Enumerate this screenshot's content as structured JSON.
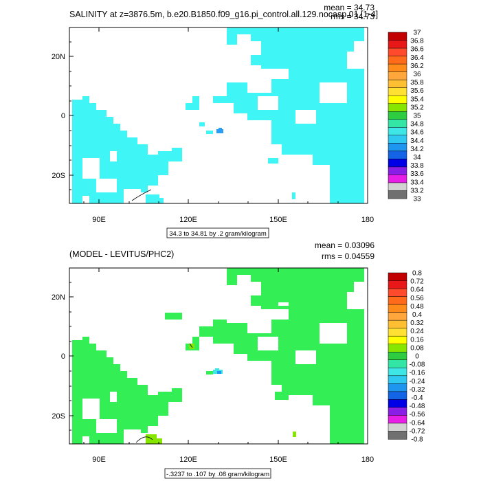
{
  "chart_data": [
    {
      "type": "heatmap",
      "title": "SALINITY at z=3876.5m, b.e20.B1850.f09_g16.pi_control.all.129.nocasp.01 [1-4]",
      "stats": {
        "mean": "mean = 34.73",
        "rms": "rms = 34.73"
      },
      "x_ticks": [
        "90E",
        "120E",
        "150E",
        "180"
      ],
      "y_ticks": [
        "20N",
        "0",
        "20S"
      ],
      "xlim": [
        80,
        180
      ],
      "ylim": [
        -30,
        30
      ],
      "contour_info": "34.3 to 34.81 by .2 gram/kilogram",
      "colorbar": {
        "labels": [
          "37",
          "36.8",
          "36.6",
          "36.4",
          "36.2",
          "36",
          "35.8",
          "35.6",
          "35.4",
          "35.2",
          "35",
          "34.8",
          "34.6",
          "34.4",
          "34.2",
          "34",
          "33.8",
          "33.6",
          "33.4",
          "33.2",
          "33"
        ],
        "colors": [
          "#c30000",
          "#e81818",
          "#ff4b2b",
          "#ff6b1a",
          "#ff8c1a",
          "#ffa63c",
          "#ffbf33",
          "#ffe033",
          "#ffff00",
          "#86e600",
          "#2ecc40",
          "#33e6a6",
          "#3fe6e6",
          "#2fc8f0",
          "#1e96f0",
          "#1464e6",
          "#0000e6",
          "#8a1ee6",
          "#e61ee6",
          "#d2d2d2",
          "#707070"
        ]
      },
      "fill_color": "#3ff5f5",
      "accent_color": "#2a9df4"
    },
    {
      "type": "heatmap",
      "title": "(MODEL - LEVITUS/PHC2)",
      "stats": {
        "mean": "mean = 0.03096",
        "rms": "rms = 0.04559"
      },
      "x_ticks": [
        "90E",
        "120E",
        "150E",
        "180"
      ],
      "y_ticks": [
        "20N",
        "0",
        "20S"
      ],
      "xlim": [
        80,
        180
      ],
      "ylim": [
        -30,
        30
      ],
      "contour_info": "-.3237 to .107 by .08 gram/kilogram",
      "colorbar": {
        "labels": [
          "0.8",
          "0.72",
          "0.64",
          "0.56",
          "0.48",
          "0.4",
          "0.32",
          "0.24",
          "0.16",
          "0.08",
          "0",
          "-0.08",
          "-0.16",
          "-0.24",
          "-0.32",
          "-0.4",
          "-0.48",
          "-0.56",
          "-0.64",
          "-0.72",
          "-0.8"
        ],
        "colors": [
          "#c30000",
          "#e81818",
          "#ff4b2b",
          "#ff6b1a",
          "#ff8c1a",
          "#ffa63c",
          "#ffbf33",
          "#ffe033",
          "#ffff00",
          "#86e600",
          "#2ecc40",
          "#33e6a6",
          "#3fe6e6",
          "#2fc8f0",
          "#1e96f0",
          "#1464e6",
          "#0000e6",
          "#8a1ee6",
          "#e61ee6",
          "#d2d2d2",
          "#707070"
        ]
      },
      "fill_color": "#33ee55",
      "accent_color": "#86e600"
    }
  ]
}
